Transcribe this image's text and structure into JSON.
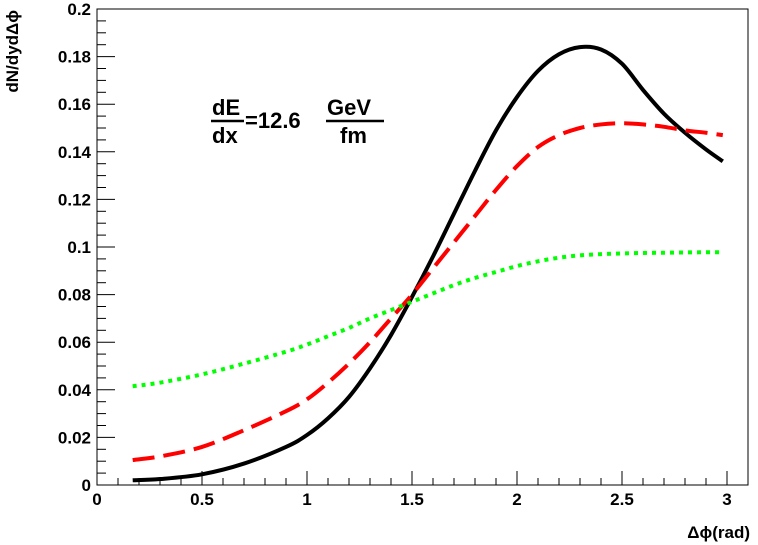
{
  "chart_data": {
    "type": "line",
    "title": "",
    "xlabel": "Δϕ(rad)",
    "ylabel": "dN/dydΔϕ",
    "xlim": [
      0,
      3.1
    ],
    "ylim": [
      0,
      0.2
    ],
    "xticks": [
      0,
      0.5,
      1,
      1.5,
      2,
      2.5,
      3
    ],
    "xtick_labels": [
      "0",
      "0.5",
      "1",
      "1.5",
      "2",
      "2.5",
      "3"
    ],
    "yticks": [
      0,
      0.02,
      0.04,
      0.06,
      0.08,
      0.1,
      0.12,
      0.14,
      0.16,
      0.18,
      0.2
    ],
    "ytick_labels": [
      "0",
      "0.02",
      "0.04",
      "0.06",
      "0.08",
      "0.1",
      "0.12",
      "0.14",
      "0.16",
      "0.18",
      "0.2"
    ],
    "grid": false,
    "annotation": {
      "lhs_numerator": "dE",
      "lhs_denominator": "dx",
      "middle": "=12.6",
      "rhs_numerator": "GeV",
      "rhs_denominator": "fm"
    },
    "series": [
      {
        "style": "solid",
        "color": "#000000",
        "x": [
          0.17,
          0.3,
          0.5,
          0.7,
          0.9,
          1.0,
          1.1,
          1.2,
          1.3,
          1.4,
          1.5,
          1.6,
          1.7,
          1.8,
          1.9,
          2.0,
          2.1,
          2.2,
          2.3,
          2.4,
          2.5,
          2.6,
          2.7,
          2.8,
          2.9,
          2.98
        ],
        "y": [
          0.002,
          0.0025,
          0.0045,
          0.009,
          0.016,
          0.021,
          0.028,
          0.037,
          0.049,
          0.063,
          0.079,
          0.096,
          0.114,
          0.132,
          0.149,
          0.163,
          0.174,
          0.181,
          0.184,
          0.183,
          0.177,
          0.166,
          0.156,
          0.148,
          0.141,
          0.136
        ]
      },
      {
        "style": "dashed",
        "color": "#ff0000",
        "x": [
          0.17,
          0.3,
          0.5,
          0.7,
          0.9,
          1.0,
          1.1,
          1.2,
          1.3,
          1.4,
          1.5,
          1.6,
          1.7,
          1.8,
          1.9,
          2.0,
          2.1,
          2.2,
          2.3,
          2.4,
          2.5,
          2.6,
          2.7,
          2.8,
          2.9,
          2.98
        ],
        "y": [
          0.0105,
          0.012,
          0.016,
          0.023,
          0.031,
          0.036,
          0.043,
          0.051,
          0.06,
          0.07,
          0.08,
          0.091,
          0.102,
          0.113,
          0.124,
          0.134,
          0.142,
          0.147,
          0.15,
          0.1515,
          0.152,
          0.1515,
          0.1505,
          0.149,
          0.148,
          0.147
        ]
      },
      {
        "style": "dotted",
        "color": "#00ff00",
        "x": [
          0.17,
          0.3,
          0.5,
          0.7,
          0.9,
          1.0,
          1.1,
          1.2,
          1.3,
          1.4,
          1.5,
          1.6,
          1.7,
          1.8,
          1.9,
          2.0,
          2.1,
          2.2,
          2.3,
          2.4,
          2.5,
          2.6,
          2.7,
          2.8,
          2.9,
          2.98
        ],
        "y": [
          0.0415,
          0.043,
          0.0465,
          0.051,
          0.056,
          0.059,
          0.0625,
          0.066,
          0.07,
          0.0735,
          0.077,
          0.0805,
          0.084,
          0.087,
          0.0895,
          0.092,
          0.094,
          0.0955,
          0.0965,
          0.097,
          0.0973,
          0.0975,
          0.0976,
          0.0977,
          0.0978,
          0.0978
        ]
      }
    ]
  }
}
